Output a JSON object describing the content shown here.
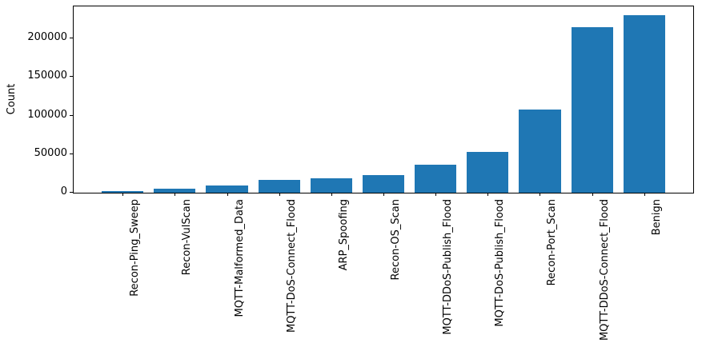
{
  "figure": {
    "background": "#ffffff"
  },
  "chart_data": {
    "type": "bar",
    "title": "",
    "xlabel": "",
    "ylabel": "Count",
    "categories": [
      "Recon-Ping_Sweep",
      "Recon-VulScan",
      "MQTT-Malformed_Data",
      "MQTT-DoS-Connect_Flood",
      "ARP_Spoofing",
      "Recon-OS_Scan",
      "MQTT-DDoS-Publish_Flood",
      "MQTT-DoS-Publish_Flood",
      "Recon-Port_Scan",
      "MQTT-DDoS-Connect_Flood",
      "Benign"
    ],
    "values": [
      2000,
      5000,
      9000,
      17000,
      19000,
      22500,
      36500,
      53000,
      107500,
      215000,
      230000
    ],
    "yticks": [
      0,
      50000,
      100000,
      150000,
      200000
    ],
    "ytick_labels": [
      "0",
      "50000",
      "100000",
      "150000",
      "200000"
    ],
    "ylim": [
      0,
      241500
    ],
    "x_label_rotation_deg": 90,
    "bar_color": "#1f77b4",
    "axis_color": "#000000",
    "text_color": "#000000",
    "grid": false,
    "legend": null
  }
}
